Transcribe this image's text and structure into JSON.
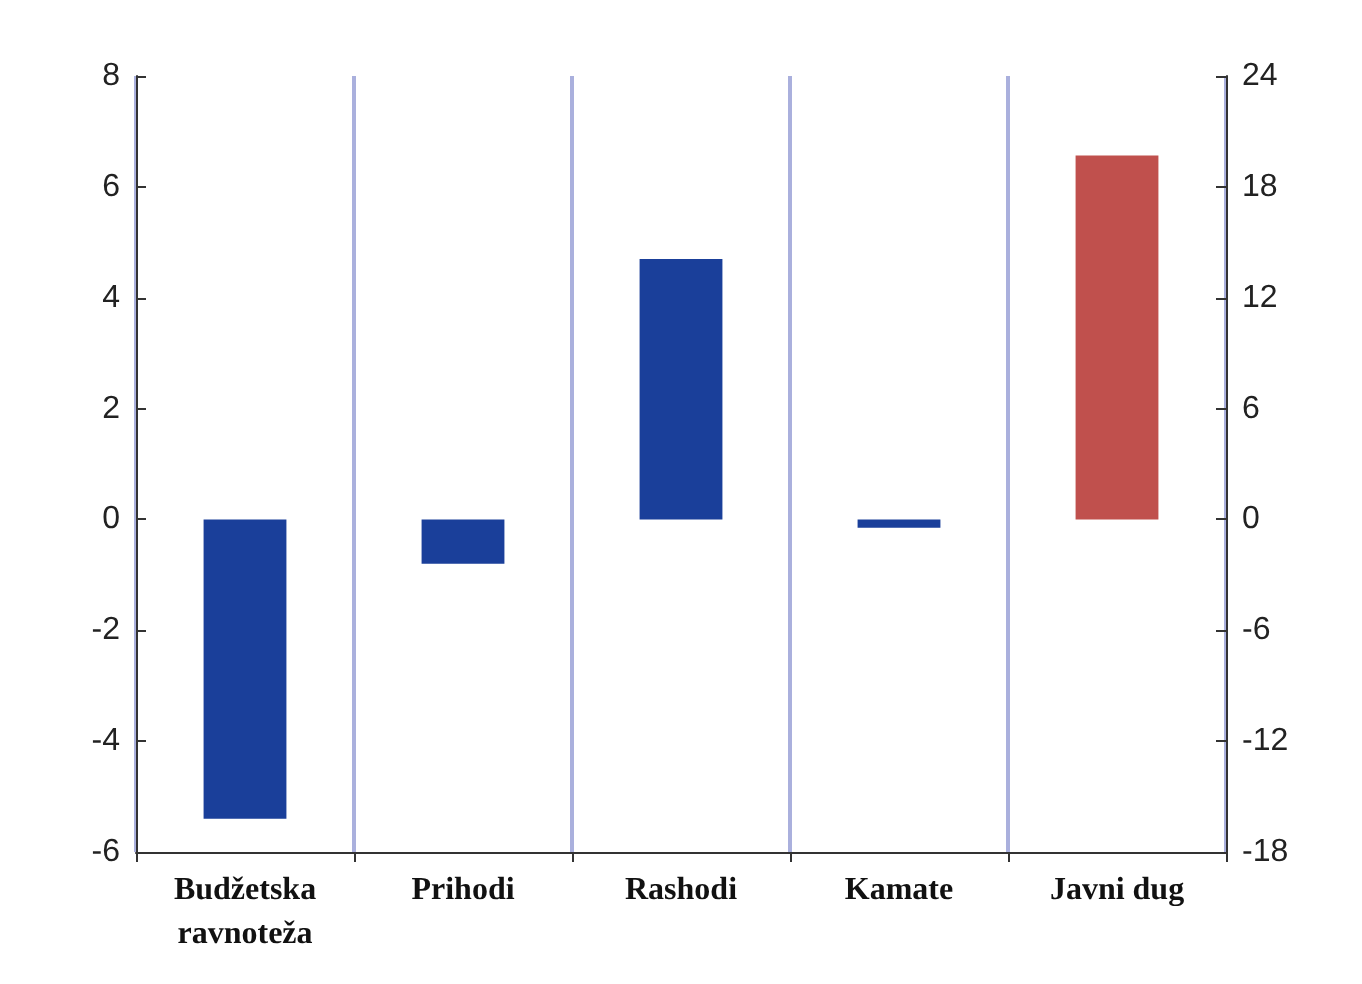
{
  "chart_data": {
    "type": "bar",
    "categories": [
      "Budžetska\nravnoteža",
      "Prihodi",
      "Rashodi",
      "Kamate",
      "Javni dug"
    ],
    "series": [
      {
        "color": "#1a3f9a",
        "values": [
          -5.4,
          -0.8,
          4.7,
          -0.15,
          null
        ]
      },
      {
        "color": "#c0504d",
        "axis": "y2",
        "values": [
          null,
          null,
          null,
          null,
          19.7
        ]
      }
    ],
    "ylim": [
      -6,
      8
    ],
    "yticks": [
      -6,
      -4,
      -2,
      0,
      2,
      4,
      6,
      8
    ],
    "y2lim": [
      -18,
      24
    ],
    "y2ticks": [
      -18,
      -12,
      -6,
      0,
      6,
      12,
      18,
      24
    ],
    "grid": "x"
  }
}
